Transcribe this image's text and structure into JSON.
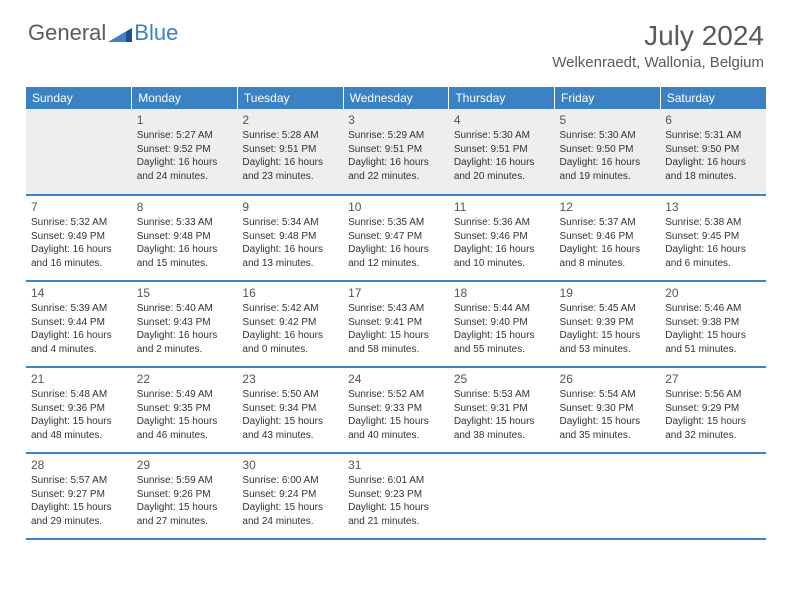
{
  "logo": {
    "general": "General",
    "blue": "Blue"
  },
  "title": "July 2024",
  "location": "Welkenraedt, Wallonia, Belgium",
  "headers": [
    "Sunday",
    "Monday",
    "Tuesday",
    "Wednesday",
    "Thursday",
    "Friday",
    "Saturday"
  ],
  "colors": {
    "header_bg": "#3b82c4",
    "header_fg": "#ffffff",
    "firstrow_bg": "#eeeeee",
    "border": "#3b82c4",
    "text": "#333333",
    "title_text": "#5a5a5a"
  },
  "weeks": [
    [
      {
        "day": "",
        "sunrise": "",
        "sunset": "",
        "daylight": ""
      },
      {
        "day": "1",
        "sunrise": "Sunrise: 5:27 AM",
        "sunset": "Sunset: 9:52 PM",
        "daylight": "Daylight: 16 hours and 24 minutes."
      },
      {
        "day": "2",
        "sunrise": "Sunrise: 5:28 AM",
        "sunset": "Sunset: 9:51 PM",
        "daylight": "Daylight: 16 hours and 23 minutes."
      },
      {
        "day": "3",
        "sunrise": "Sunrise: 5:29 AM",
        "sunset": "Sunset: 9:51 PM",
        "daylight": "Daylight: 16 hours and 22 minutes."
      },
      {
        "day": "4",
        "sunrise": "Sunrise: 5:30 AM",
        "sunset": "Sunset: 9:51 PM",
        "daylight": "Daylight: 16 hours and 20 minutes."
      },
      {
        "day": "5",
        "sunrise": "Sunrise: 5:30 AM",
        "sunset": "Sunset: 9:50 PM",
        "daylight": "Daylight: 16 hours and 19 minutes."
      },
      {
        "day": "6",
        "sunrise": "Sunrise: 5:31 AM",
        "sunset": "Sunset: 9:50 PM",
        "daylight": "Daylight: 16 hours and 18 minutes."
      }
    ],
    [
      {
        "day": "7",
        "sunrise": "Sunrise: 5:32 AM",
        "sunset": "Sunset: 9:49 PM",
        "daylight": "Daylight: 16 hours and 16 minutes."
      },
      {
        "day": "8",
        "sunrise": "Sunrise: 5:33 AM",
        "sunset": "Sunset: 9:48 PM",
        "daylight": "Daylight: 16 hours and 15 minutes."
      },
      {
        "day": "9",
        "sunrise": "Sunrise: 5:34 AM",
        "sunset": "Sunset: 9:48 PM",
        "daylight": "Daylight: 16 hours and 13 minutes."
      },
      {
        "day": "10",
        "sunrise": "Sunrise: 5:35 AM",
        "sunset": "Sunset: 9:47 PM",
        "daylight": "Daylight: 16 hours and 12 minutes."
      },
      {
        "day": "11",
        "sunrise": "Sunrise: 5:36 AM",
        "sunset": "Sunset: 9:46 PM",
        "daylight": "Daylight: 16 hours and 10 minutes."
      },
      {
        "day": "12",
        "sunrise": "Sunrise: 5:37 AM",
        "sunset": "Sunset: 9:46 PM",
        "daylight": "Daylight: 16 hours and 8 minutes."
      },
      {
        "day": "13",
        "sunrise": "Sunrise: 5:38 AM",
        "sunset": "Sunset: 9:45 PM",
        "daylight": "Daylight: 16 hours and 6 minutes."
      }
    ],
    [
      {
        "day": "14",
        "sunrise": "Sunrise: 5:39 AM",
        "sunset": "Sunset: 9:44 PM",
        "daylight": "Daylight: 16 hours and 4 minutes."
      },
      {
        "day": "15",
        "sunrise": "Sunrise: 5:40 AM",
        "sunset": "Sunset: 9:43 PM",
        "daylight": "Daylight: 16 hours and 2 minutes."
      },
      {
        "day": "16",
        "sunrise": "Sunrise: 5:42 AM",
        "sunset": "Sunset: 9:42 PM",
        "daylight": "Daylight: 16 hours and 0 minutes."
      },
      {
        "day": "17",
        "sunrise": "Sunrise: 5:43 AM",
        "sunset": "Sunset: 9:41 PM",
        "daylight": "Daylight: 15 hours and 58 minutes."
      },
      {
        "day": "18",
        "sunrise": "Sunrise: 5:44 AM",
        "sunset": "Sunset: 9:40 PM",
        "daylight": "Daylight: 15 hours and 55 minutes."
      },
      {
        "day": "19",
        "sunrise": "Sunrise: 5:45 AM",
        "sunset": "Sunset: 9:39 PM",
        "daylight": "Daylight: 15 hours and 53 minutes."
      },
      {
        "day": "20",
        "sunrise": "Sunrise: 5:46 AM",
        "sunset": "Sunset: 9:38 PM",
        "daylight": "Daylight: 15 hours and 51 minutes."
      }
    ],
    [
      {
        "day": "21",
        "sunrise": "Sunrise: 5:48 AM",
        "sunset": "Sunset: 9:36 PM",
        "daylight": "Daylight: 15 hours and 48 minutes."
      },
      {
        "day": "22",
        "sunrise": "Sunrise: 5:49 AM",
        "sunset": "Sunset: 9:35 PM",
        "daylight": "Daylight: 15 hours and 46 minutes."
      },
      {
        "day": "23",
        "sunrise": "Sunrise: 5:50 AM",
        "sunset": "Sunset: 9:34 PM",
        "daylight": "Daylight: 15 hours and 43 minutes."
      },
      {
        "day": "24",
        "sunrise": "Sunrise: 5:52 AM",
        "sunset": "Sunset: 9:33 PM",
        "daylight": "Daylight: 15 hours and 40 minutes."
      },
      {
        "day": "25",
        "sunrise": "Sunrise: 5:53 AM",
        "sunset": "Sunset: 9:31 PM",
        "daylight": "Daylight: 15 hours and 38 minutes."
      },
      {
        "day": "26",
        "sunrise": "Sunrise: 5:54 AM",
        "sunset": "Sunset: 9:30 PM",
        "daylight": "Daylight: 15 hours and 35 minutes."
      },
      {
        "day": "27",
        "sunrise": "Sunrise: 5:56 AM",
        "sunset": "Sunset: 9:29 PM",
        "daylight": "Daylight: 15 hours and 32 minutes."
      }
    ],
    [
      {
        "day": "28",
        "sunrise": "Sunrise: 5:57 AM",
        "sunset": "Sunset: 9:27 PM",
        "daylight": "Daylight: 15 hours and 29 minutes."
      },
      {
        "day": "29",
        "sunrise": "Sunrise: 5:59 AM",
        "sunset": "Sunset: 9:26 PM",
        "daylight": "Daylight: 15 hours and 27 minutes."
      },
      {
        "day": "30",
        "sunrise": "Sunrise: 6:00 AM",
        "sunset": "Sunset: 9:24 PM",
        "daylight": "Daylight: 15 hours and 24 minutes."
      },
      {
        "day": "31",
        "sunrise": "Sunrise: 6:01 AM",
        "sunset": "Sunset: 9:23 PM",
        "daylight": "Daylight: 15 hours and 21 minutes."
      },
      {
        "day": "",
        "sunrise": "",
        "sunset": "",
        "daylight": ""
      },
      {
        "day": "",
        "sunrise": "",
        "sunset": "",
        "daylight": ""
      },
      {
        "day": "",
        "sunrise": "",
        "sunset": "",
        "daylight": ""
      }
    ]
  ]
}
